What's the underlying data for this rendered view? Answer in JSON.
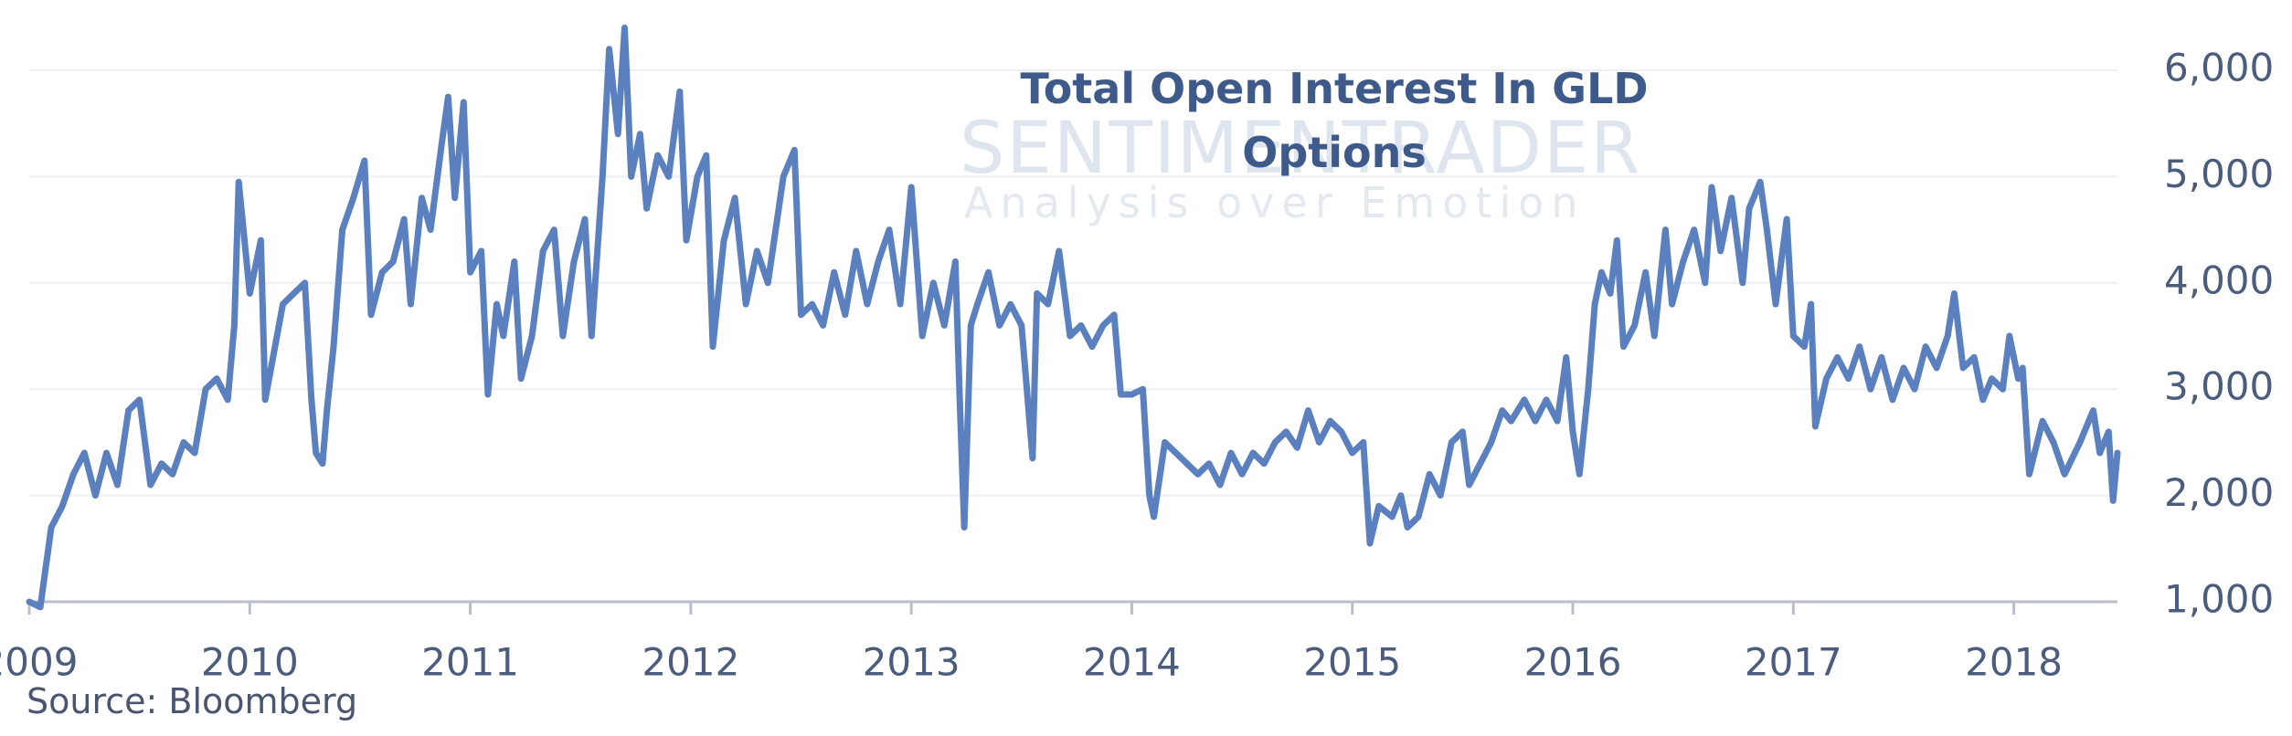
{
  "chart_data": {
    "type": "line",
    "title": "Total Open Interest In GLD Options",
    "watermark": "SENTIMENTRADER",
    "watermark_subtitle": "Analysis over Emotion",
    "source": "Source: Bloomberg",
    "color": "#5b80c0",
    "grid": true,
    "xlim": [
      2009,
      2018.47
    ],
    "xticks": [
      2009,
      2010,
      2011,
      2012,
      2013,
      2014,
      2015,
      2016,
      2017,
      2018
    ],
    "ylim": [
      1000,
      6500
    ],
    "yticks": [
      {
        "value": 1000,
        "label": "1,000"
      },
      {
        "value": 2000,
        "label": "2,000"
      },
      {
        "value": 3000,
        "label": "3,000"
      },
      {
        "value": 4000,
        "label": "4,000"
      },
      {
        "value": 5000,
        "label": "5,000"
      },
      {
        "value": 6000,
        "label": "6,000"
      }
    ],
    "x": [
      2009.0,
      2009.05,
      2009.1,
      2009.15,
      2009.2,
      2009.25,
      2009.3,
      2009.35,
      2009.4,
      2009.45,
      2009.5,
      2009.55,
      2009.6,
      2009.65,
      2009.7,
      2009.75,
      2009.8,
      2009.85,
      2009.9,
      2009.93,
      2009.95,
      2010.0,
      2010.05,
      2010.07,
      2010.15,
      2010.2,
      2010.25,
      2010.28,
      2010.3,
      2010.33,
      2010.35,
      2010.38,
      2010.42,
      2010.47,
      2010.52,
      2010.55,
      2010.6,
      2010.65,
      2010.7,
      2010.73,
      2010.78,
      2010.82,
      2010.87,
      2010.9,
      2010.93,
      2010.97,
      2011.0,
      2011.05,
      2011.08,
      2011.12,
      2011.15,
      2011.2,
      2011.23,
      2011.28,
      2011.33,
      2011.38,
      2011.42,
      2011.47,
      2011.52,
      2011.55,
      2011.6,
      2011.63,
      2011.67,
      2011.7,
      2011.73,
      2011.77,
      2011.8,
      2011.85,
      2011.9,
      2011.95,
      2011.98,
      2012.03,
      2012.07,
      2012.1,
      2012.15,
      2012.2,
      2012.25,
      2012.3,
      2012.35,
      2012.42,
      2012.47,
      2012.5,
      2012.55,
      2012.6,
      2012.65,
      2012.7,
      2012.75,
      2012.8,
      2012.85,
      2012.9,
      2012.95,
      2013.0,
      2013.05,
      2013.1,
      2013.15,
      2013.2,
      2013.22,
      2013.24,
      2013.27,
      2013.3,
      2013.35,
      2013.4,
      2013.45,
      2013.5,
      2013.55,
      2013.57,
      2013.62,
      2013.67,
      2013.72,
      2013.77,
      2013.82,
      2013.87,
      2013.92,
      2013.95,
      2014.0,
      2014.05,
      2014.08,
      2014.1,
      2014.15,
      2014.2,
      2014.25,
      2014.3,
      2014.35,
      2014.4,
      2014.45,
      2014.5,
      2014.55,
      2014.6,
      2014.65,
      2014.7,
      2014.75,
      2014.8,
      2014.85,
      2014.9,
      2014.95,
      2015.0,
      2015.05,
      2015.08,
      2015.12,
      2015.18,
      2015.22,
      2015.25,
      2015.3,
      2015.35,
      2015.4,
      2015.45,
      2015.5,
      2015.53,
      2015.58,
      2015.63,
      2015.68,
      2015.72,
      2015.78,
      2015.83,
      2015.88,
      2015.93,
      2015.97,
      2016.0,
      2016.03,
      2016.07,
      2016.1,
      2016.13,
      2016.17,
      2016.2,
      2016.23,
      2016.28,
      2016.33,
      2016.37,
      2016.42,
      2016.45,
      2016.5,
      2016.55,
      2016.6,
      2016.63,
      2016.67,
      2016.72,
      2016.77,
      2016.8,
      2016.85,
      2016.88,
      2016.92,
      2016.97,
      2017.0,
      2017.05,
      2017.08,
      2017.1,
      2017.15,
      2017.2,
      2017.25,
      2017.3,
      2017.35,
      2017.4,
      2017.45,
      2017.5,
      2017.55,
      2017.6,
      2017.65,
      2017.7,
      2017.73,
      2017.77,
      2017.82,
      2017.86,
      2017.9,
      2017.95,
      2017.98,
      2018.02,
      2018.04,
      2018.07,
      2018.13,
      2018.18,
      2018.23,
      2018.3,
      2018.36,
      2018.39,
      2018.43,
      2018.45,
      2018.47
    ],
    "values": [
      1000,
      950,
      1700,
      1900,
      2200,
      2400,
      2000,
      2400,
      2100,
      2800,
      2900,
      2100,
      2300,
      2200,
      2500,
      2400,
      3000,
      3100,
      2900,
      3600,
      4950,
      3900,
      4400,
      2900,
      3800,
      3900,
      4000,
      2900,
      2400,
      2300,
      2800,
      3400,
      4500,
      4800,
      5150,
      3700,
      4100,
      4200,
      4600,
      3800,
      4800,
      4500,
      5300,
      5750,
      4800,
      5700,
      4100,
      4300,
      2950,
      3800,
      3500,
      4200,
      3100,
      3500,
      4300,
      4500,
      3500,
      4200,
      4600,
      3500,
      5000,
      6200,
      5400,
      6400,
      5000,
      5400,
      4700,
      5200,
      5000,
      5800,
      4400,
      5000,
      5200,
      3400,
      4400,
      4800,
      3800,
      4300,
      4000,
      5000,
      5250,
      3700,
      3800,
      3600,
      4100,
      3700,
      4300,
      3800,
      4200,
      4500,
      3800,
      4900,
      3500,
      4000,
      3600,
      4200,
      2900,
      1700,
      3600,
      3800,
      4100,
      3600,
      3800,
      3600,
      2350,
      3900,
      3800,
      4300,
      3500,
      3600,
      3400,
      3600,
      3700,
      2950,
      2950,
      3000,
      2000,
      1800,
      2500,
      2400,
      2300,
      2200,
      2300,
      2100,
      2400,
      2200,
      2400,
      2300,
      2500,
      2600,
      2450,
      2800,
      2500,
      2700,
      2600,
      2400,
      2500,
      1550,
      1900,
      1800,
      2000,
      1700,
      1800,
      2200,
      2000,
      2500,
      2600,
      2100,
      2300,
      2500,
      2800,
      2700,
      2900,
      2700,
      2900,
      2700,
      3300,
      2600,
      2200,
      3000,
      3800,
      4100,
      3900,
      4400,
      3400,
      3600,
      4100,
      3500,
      4500,
      3800,
      4200,
      4500,
      4000,
      4900,
      4300,
      4800,
      4000,
      4700,
      4950,
      4500,
      3800,
      4600,
      3500,
      3400,
      3800,
      2650,
      3100,
      3300,
      3100,
      3400,
      3000,
      3300,
      2900,
      3200,
      3000,
      3400,
      3200,
      3500,
      3900,
      3200,
      3300,
      2900,
      3100,
      3000,
      3500,
      3100,
      3200,
      2200,
      2700,
      2500,
      2200,
      2500,
      2800,
      2400,
      2600,
      1950,
      2400
    ]
  }
}
